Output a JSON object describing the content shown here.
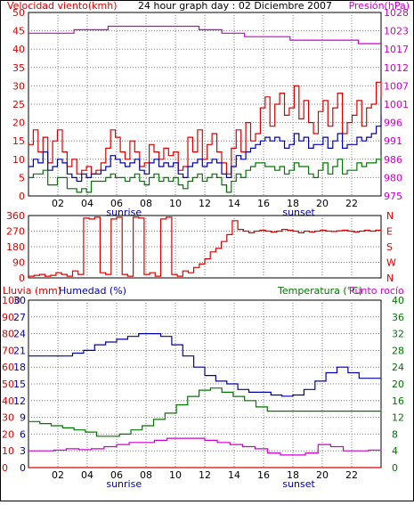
{
  "colors": {
    "red": "#dd0000",
    "blue": "#0000aa",
    "green": "#007700",
    "magenta": "#cc00cc",
    "grid": "#7f7f7f",
    "frame": "#000000"
  },
  "panel1": {
    "title_left": "Velocidad viento(kmh)",
    "title_center": "24 hour graph day : 02 Diciembre 2007",
    "title_right": "Presión(hPa)"
  },
  "panel3": {
    "label_rain": "Lluvia (mm)",
    "label_humidity": "Humedad (%)",
    "label_temp": "Temperatura (°C)",
    "label_dew": "Punto rocío"
  },
  "sunrise_label": "sunrise",
  "sunset_label": "sunset",
  "chart_data": [
    {
      "type": "line",
      "title": "24 hour graph day : 02 Diciembre 2007",
      "x_ticks": [
        "02",
        "04",
        "06",
        "08",
        "10",
        "12",
        "14",
        "16",
        "18",
        "20",
        "22"
      ],
      "y_left_label": "Velocidad viento(kmh)",
      "y_left_ticks": [
        0,
        5,
        10,
        15,
        20,
        25,
        30,
        35,
        40,
        45,
        50
      ],
      "y_left_range": [
        0,
        50
      ],
      "y_right_label": "Presión(hPa)",
      "y_right_ticks": [
        975,
        980,
        986,
        991,
        996,
        1001,
        1007,
        1012,
        1017,
        1023,
        1028
      ],
      "y_right_range": [
        975,
        1028
      ],
      "series": [
        {
          "name": "wind_gust",
          "color": "red",
          "axis": "left",
          "values": [
            14,
            18,
            12,
            16,
            9,
            15,
            18,
            12,
            8,
            10,
            6,
            7,
            8,
            6,
            7,
            9,
            13,
            18,
            16,
            12,
            10,
            15,
            12,
            8,
            9,
            14,
            12,
            10,
            13,
            11,
            12,
            7,
            8,
            16,
            12,
            18,
            10,
            14,
            17,
            12,
            9,
            6,
            13,
            18,
            12,
            20,
            15,
            17,
            24,
            27,
            19,
            25,
            28,
            22,
            24,
            30,
            21,
            26,
            20,
            17,
            23,
            26,
            19,
            24,
            28,
            17,
            20,
            22,
            26,
            19,
            24,
            25,
            31,
            27
          ]
        },
        {
          "name": "wind_avg",
          "color": "blue",
          "axis": "left",
          "values": [
            8,
            10,
            9,
            12,
            7,
            8,
            10,
            9,
            6,
            5,
            4,
            6,
            5,
            6,
            6,
            7,
            8,
            11,
            10,
            9,
            8,
            9,
            10,
            7,
            6,
            9,
            10,
            8,
            9,
            8,
            9,
            6,
            5,
            8,
            9,
            10,
            8,
            9,
            10,
            9,
            6,
            5,
            8,
            11,
            10,
            12,
            13,
            14,
            15,
            16,
            15,
            16,
            15,
            13,
            14,
            17,
            15,
            16,
            13,
            14,
            14,
            16,
            13,
            15,
            17,
            13,
            14,
            14,
            16,
            15,
            16,
            17,
            19,
            22
          ]
        },
        {
          "name": "wind_min",
          "color": "green",
          "axis": "left",
          "values": [
            5,
            6,
            6,
            7,
            3,
            3,
            5,
            5,
            2,
            2,
            1,
            2,
            1,
            4,
            4,
            4,
            5,
            6,
            5,
            5,
            4,
            5,
            6,
            4,
            3,
            5,
            6,
            4,
            5,
            4,
            5,
            3,
            2,
            4,
            5,
            6,
            4,
            5,
            6,
            5,
            3,
            1,
            4,
            6,
            5,
            7,
            8,
            9,
            9,
            8,
            8,
            7,
            8,
            6,
            7,
            9,
            8,
            8,
            6,
            5,
            7,
            9,
            6,
            8,
            10,
            6,
            7,
            7,
            9,
            8,
            9,
            9,
            10,
            11
          ]
        },
        {
          "name": "pressure",
          "color": "magenta",
          "axis": "right",
          "values": [
            1022,
            1022,
            1022,
            1022,
            1023,
            1023,
            1023,
            1024,
            1024,
            1024,
            1024,
            1024,
            1024,
            1024,
            1024,
            1023,
            1023,
            1022,
            1022,
            1021,
            1021,
            1021,
            1021,
            1020,
            1020,
            1020,
            1020,
            1020,
            1020,
            1019,
            1019,
            1019
          ]
        }
      ]
    },
    {
      "type": "line",
      "title": "",
      "x_ticks": [
        "02",
        "04",
        "06",
        "08",
        "10",
        "12",
        "14",
        "16",
        "18",
        "20",
        "22"
      ],
      "y_left_ticks": [
        0,
        90,
        180,
        270,
        360
      ],
      "y_left_range": [
        0,
        360
      ],
      "y_right_ticks": [
        "N",
        "E",
        "S",
        "W",
        "N"
      ],
      "series": [
        {
          "name": "wind_direction",
          "color": "red",
          "values": [
            10,
            15,
            20,
            10,
            15,
            30,
            20,
            10,
            40,
            20,
            345,
            340,
            350,
            30,
            20,
            340,
            350,
            20,
            10,
            350,
            345,
            20,
            30,
            10,
            340,
            350,
            20,
            10,
            40,
            30,
            60,
            80,
            110,
            150,
            170,
            210,
            250,
            330,
            280,
            270,
            260,
            270,
            275,
            270,
            265,
            270,
            280,
            275,
            270,
            260,
            270,
            265,
            270,
            275,
            270,
            268,
            272,
            275,
            270,
            265,
            270,
            275,
            270,
            275,
            280
          ]
        }
      ]
    },
    {
      "type": "line",
      "title": "",
      "x_ticks": [
        "02",
        "04",
        "06",
        "08",
        "10",
        "12",
        "14",
        "16",
        "18",
        "20",
        "22"
      ],
      "y_rain_label": "Lluvia (mm)",
      "y_rain_ticks": [
        0,
        10,
        20,
        30,
        40,
        50,
        60,
        70,
        80,
        90,
        100
      ],
      "y_hum_label": "Humedad (%)",
      "y_hum_ticks": [
        0,
        3,
        6,
        9,
        12,
        15,
        18,
        21,
        24,
        27,
        30
      ],
      "y_right_label": "Temperatura (°C)",
      "y_right_ticks": [
        0,
        4,
        8,
        12,
        16,
        20,
        24,
        28,
        32,
        36,
        40
      ],
      "y_right_range": [
        0,
        40
      ],
      "series": [
        {
          "name": "humidity",
          "color": "blue",
          "axis": "hum",
          "values": [
            20,
            20,
            20,
            20,
            20.5,
            21,
            22,
            22.5,
            23,
            23.5,
            24,
            24,
            23.5,
            22,
            20,
            18,
            16.5,
            15.5,
            15,
            14,
            13.5,
            13.5,
            13,
            12.8,
            13,
            14,
            15.5,
            17,
            18,
            17,
            16,
            16,
            16
          ]
        },
        {
          "name": "temperature",
          "color": "green",
          "axis": "right",
          "values": [
            11,
            10.5,
            10,
            9.5,
            9,
            8.5,
            7.5,
            7.5,
            8,
            9,
            10,
            11.5,
            13,
            15,
            17,
            18.5,
            19,
            18,
            17,
            16,
            14.5,
            13.5,
            13.5,
            13.5,
            13.5,
            13.5,
            13.5,
            13.5,
            13.5,
            13.5,
            13.5,
            14
          ]
        },
        {
          "name": "dew_point",
          "color": "magenta",
          "axis": "right",
          "values": [
            4,
            4,
            4.2,
            4.5,
            4.3,
            4.5,
            5,
            5.5,
            6,
            6,
            6.5,
            7,
            7,
            7,
            6.5,
            6,
            5.5,
            5,
            4.5,
            3.5,
            3,
            3,
            3.5,
            5.5,
            5,
            4,
            4,
            4.2,
            4.5
          ]
        },
        {
          "name": "rain",
          "color": "red",
          "axis": "rain",
          "values": [
            0,
            0,
            0,
            0,
            0,
            0,
            0,
            0,
            0,
            0,
            0,
            0,
            0
          ]
        }
      ]
    }
  ]
}
